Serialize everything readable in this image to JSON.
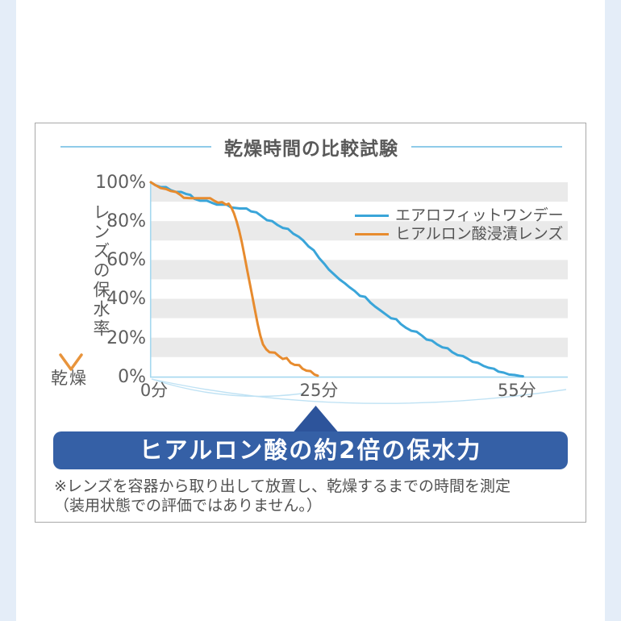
{
  "page": {
    "side_strip_color": "#e4edf8",
    "card_border_color": "#a8a8a8"
  },
  "chart_data": {
    "type": "line",
    "title": "乾燥時間の比較試験",
    "y_axis_caption": "レンズの保水率",
    "y_axis_caption_end": "乾燥",
    "xlim": [
      0,
      63.5
    ],
    "ylim": [
      0,
      100
    ],
    "x_ticks": [
      {
        "value": 0,
        "label": "0分"
      },
      {
        "value": 25,
        "label": "25分"
      },
      {
        "value": 55,
        "label": "55分"
      }
    ],
    "y_ticks": [
      {
        "value": 100,
        "label": "100%"
      },
      {
        "value": 80,
        "label": "80%"
      },
      {
        "value": 60,
        "label": "60%"
      },
      {
        "value": 40,
        "label": "40%"
      },
      {
        "value": 20,
        "label": "20%"
      },
      {
        "value": 0,
        "label": "0%"
      }
    ],
    "stripe_bands_pct": [
      [
        100,
        90
      ],
      [
        80,
        70
      ],
      [
        60,
        50
      ],
      [
        40,
        30
      ],
      [
        20,
        10
      ]
    ],
    "stripe_color": "#eaeaea",
    "axis_color": "#a5d8ef",
    "arc_color": "#bfe2f4",
    "annotation_arcs_minutes": [
      [
        0,
        25
      ],
      [
        0,
        55
      ]
    ],
    "series": [
      {
        "name": "エアロフィットワンデー",
        "color": "#3aa5d9",
        "points": [
          [
            0,
            100
          ],
          [
            0.7,
            98.5
          ],
          [
            1.5,
            97.5
          ],
          [
            2.3,
            97.5
          ],
          [
            3,
            96
          ],
          [
            3.8,
            95
          ],
          [
            4.6,
            95
          ],
          [
            5.3,
            94
          ],
          [
            6,
            93.5
          ],
          [
            6.6,
            91.5
          ],
          [
            7.5,
            90.5
          ],
          [
            8.5,
            90.5
          ],
          [
            9.2,
            89.5
          ],
          [
            10,
            88.5
          ],
          [
            11.5,
            88.5
          ],
          [
            12.2,
            87
          ],
          [
            13.5,
            86.5
          ],
          [
            14.5,
            86.5
          ],
          [
            15.2,
            85
          ],
          [
            16,
            84.5
          ],
          [
            16.8,
            82.5
          ],
          [
            17.6,
            80.5
          ],
          [
            18.4,
            80
          ],
          [
            19.2,
            78
          ],
          [
            20,
            76.5
          ],
          [
            20.8,
            76
          ],
          [
            21.6,
            73.5
          ],
          [
            22.4,
            72
          ],
          [
            23.1,
            70
          ],
          [
            23.9,
            67
          ],
          [
            24.7,
            65
          ],
          [
            25.5,
            61
          ],
          [
            26.3,
            58
          ],
          [
            27,
            55
          ],
          [
            27.8,
            52.5
          ],
          [
            28.6,
            50
          ],
          [
            29.4,
            48
          ],
          [
            30.1,
            46
          ],
          [
            30.9,
            44
          ],
          [
            31.7,
            41.5
          ],
          [
            32.5,
            41
          ],
          [
            33.3,
            38
          ],
          [
            34,
            36
          ],
          [
            34.8,
            34
          ],
          [
            35.6,
            32
          ],
          [
            36.4,
            30
          ],
          [
            37.2,
            29.5
          ],
          [
            37.9,
            27
          ],
          [
            38.7,
            25
          ],
          [
            39.5,
            23.5
          ],
          [
            40.3,
            23
          ],
          [
            41.1,
            21
          ],
          [
            41.8,
            19
          ],
          [
            42.6,
            18.5
          ],
          [
            43.4,
            16.5
          ],
          [
            44.2,
            15
          ],
          [
            45,
            14.5
          ],
          [
            45.7,
            12.5
          ],
          [
            46.5,
            11
          ],
          [
            47.3,
            10.5
          ],
          [
            48.1,
            9
          ],
          [
            48.8,
            7.5
          ],
          [
            49.6,
            7
          ],
          [
            50.4,
            5.5
          ],
          [
            51.2,
            4.5
          ],
          [
            52,
            4
          ],
          [
            52.7,
            2.5
          ],
          [
            53.5,
            2
          ],
          [
            54.3,
            1
          ],
          [
            55.1,
            0.8
          ],
          [
            55.9,
            0.3
          ],
          [
            56.4,
            0.1
          ]
        ]
      },
      {
        "name": "ヒアルロン酸浸漬レンズ",
        "color": "#e78b2e",
        "points": [
          [
            0,
            100
          ],
          [
            0.7,
            98.5
          ],
          [
            1.5,
            97
          ],
          [
            2.3,
            96.5
          ],
          [
            3,
            95.5
          ],
          [
            3.8,
            95
          ],
          [
            4.5,
            93.5
          ],
          [
            5,
            92
          ],
          [
            6,
            91.8
          ],
          [
            7,
            91.8
          ],
          [
            8,
            91.8
          ],
          [
            9,
            91.8
          ],
          [
            9.6,
            90.5
          ],
          [
            10.2,
            89.5
          ],
          [
            10.8,
            89.8
          ],
          [
            11.4,
            88.5
          ],
          [
            11.8,
            89
          ],
          [
            12.2,
            87
          ],
          [
            12.6,
            84
          ],
          [
            13,
            80
          ],
          [
            13.4,
            75
          ],
          [
            13.8,
            69
          ],
          [
            14.2,
            62
          ],
          [
            14.6,
            55
          ],
          [
            15,
            48
          ],
          [
            15.4,
            41
          ],
          [
            15.8,
            34
          ],
          [
            16.2,
            27
          ],
          [
            16.6,
            21
          ],
          [
            17,
            16.5
          ],
          [
            17.5,
            14
          ],
          [
            18,
            12.5
          ],
          [
            18.8,
            12.3
          ],
          [
            19.4,
            10.5
          ],
          [
            20,
            9
          ],
          [
            20.6,
            9.5
          ],
          [
            21.2,
            7
          ],
          [
            21.8,
            6
          ],
          [
            22.5,
            5.8
          ],
          [
            23,
            4
          ],
          [
            23.6,
            3
          ],
          [
            24.2,
            2.8
          ],
          [
            24.8,
            1
          ],
          [
            25.3,
            0.4
          ]
        ]
      }
    ],
    "legend_position": "upper right",
    "grid": "horizontal stripe bands"
  },
  "callout": {
    "text": "ヒアルロン酸の約2倍の保水力",
    "bg_color": "#3560a6",
    "pointer_color": "#2d549b",
    "points_at_minute": 25
  },
  "note": {
    "line1": "※レンズを容器から取り出して放置し、乾燥するまでの時間を測定",
    "line2": "（装用状態での評価ではありません。）"
  }
}
